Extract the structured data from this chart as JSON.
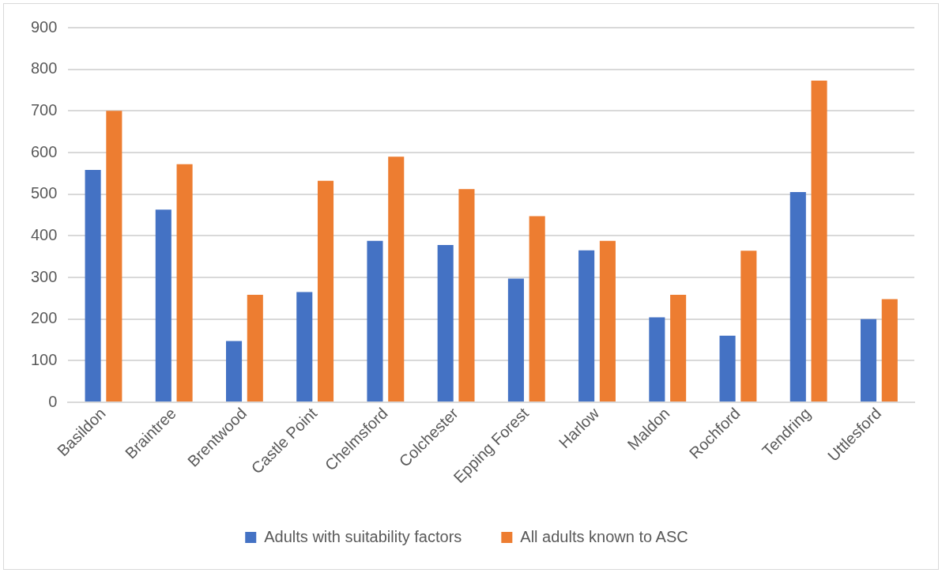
{
  "chart_data": {
    "type": "bar",
    "categories": [
      "Basildon",
      "Braintree",
      "Brentwood",
      "Castle Point",
      "Chelmsford",
      "Colchester",
      "Epping Forest",
      "Harlow",
      "Maldon",
      "Rochford",
      "Tendring",
      "Uttlesford"
    ],
    "series": [
      {
        "name": "Adults with suitability factors",
        "color": "#4472c4",
        "values": [
          558,
          463,
          147,
          265,
          388,
          378,
          297,
          365,
          204,
          160,
          505,
          200
        ]
      },
      {
        "name": "All adults known to ASC",
        "color": "#ed7d31",
        "values": [
          700,
          572,
          258,
          532,
          590,
          512,
          447,
          388,
          258,
          364,
          773,
          248
        ]
      }
    ],
    "ylim": [
      0,
      900
    ],
    "yticks": [
      0,
      100,
      200,
      300,
      400,
      500,
      600,
      700,
      800,
      900
    ],
    "grid": "y",
    "legend": "bottom"
  }
}
